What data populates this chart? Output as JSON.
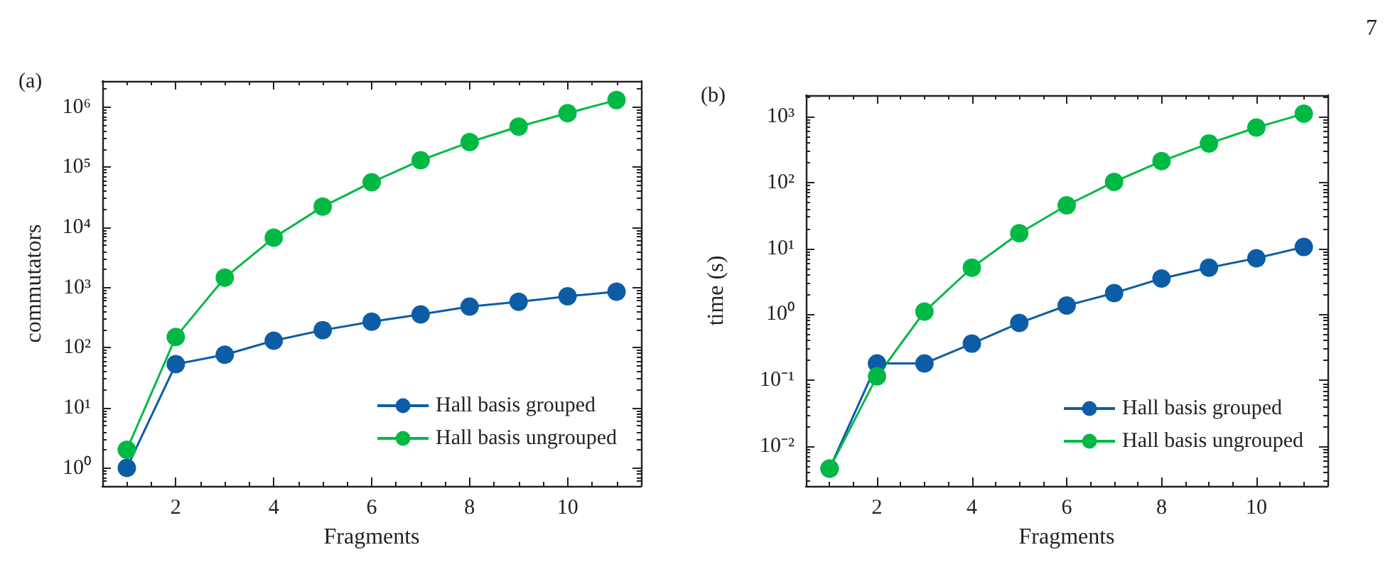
{
  "chart_data": [
    {
      "type": "line",
      "title": "(a)",
      "xlabel": "Fragments",
      "ylabel": "commutators",
      "log": "y",
      "marker": "circle",
      "line_style": "solid",
      "grid": false,
      "legend": "bottom right",
      "x": [
        1,
        2,
        3,
        4,
        5,
        6,
        7,
        8,
        9,
        10,
        11
      ],
      "xlim": [
        0.5,
        11.5
      ],
      "xticks": [
        2,
        4,
        6,
        8,
        10
      ],
      "ylim": [
        0.5,
        2700000
      ],
      "yticks": [
        {
          "value": 1,
          "label": "10⁰"
        },
        {
          "value": 10,
          "label": "10¹"
        },
        {
          "value": 100,
          "label": "10²"
        },
        {
          "value": 1000,
          "label": "10³"
        },
        {
          "value": 10000,
          "label": "10⁴"
        },
        {
          "value": 100000,
          "label": "10⁵"
        },
        {
          "value": 1000000,
          "label": "10⁶"
        }
      ],
      "series": [
        {
          "name": "Hall basis grouped",
          "color": "#0c5da5",
          "values": [
            1,
            53,
            76,
            130,
            195,
            270,
            355,
            480,
            575,
            710,
            850
          ]
        },
        {
          "name": "Hall basis ungrouped",
          "color": "#00b945",
          "values": [
            2,
            150,
            1450,
            6700,
            22000,
            56000,
            130000,
            260000,
            470000,
            790000,
            1300000
          ]
        }
      ]
    },
    {
      "type": "line",
      "title": "(b)",
      "xlabel": "Fragments",
      "ylabel": "time (s)",
      "log": "y",
      "marker": "circle",
      "line_style": "solid",
      "grid": false,
      "legend": "bottom right",
      "annotations": [
        "7"
      ],
      "x": [
        1,
        2,
        3,
        4,
        5,
        6,
        7,
        8,
        9,
        10,
        11
      ],
      "xlim": [
        0.5,
        11.5
      ],
      "xticks": [
        2,
        4,
        6,
        8,
        10
      ],
      "ylim": [
        0.0025,
        2100
      ],
      "yticks": [
        {
          "value": 0.01,
          "label": "10⁻²"
        },
        {
          "value": 0.1,
          "label": "10⁻¹"
        },
        {
          "value": 1,
          "label": "10⁰"
        },
        {
          "value": 10,
          "label": "10¹"
        },
        {
          "value": 100,
          "label": "10²"
        },
        {
          "value": 1000,
          "label": "10³"
        }
      ],
      "series": [
        {
          "name": "Hall basis grouped",
          "color": "#0c5da5",
          "values": [
            0.0046,
            0.18,
            0.18,
            0.36,
            0.74,
            1.36,
            2.1,
            3.5,
            5.1,
            7.1,
            10.5
          ]
        },
        {
          "name": "Hall basis ungrouped",
          "color": "#00b945",
          "values": [
            0.0046,
            0.115,
            1.1,
            5.1,
            17,
            45,
            102,
            210,
            390,
            680,
            1100
          ]
        }
      ]
    }
  ]
}
